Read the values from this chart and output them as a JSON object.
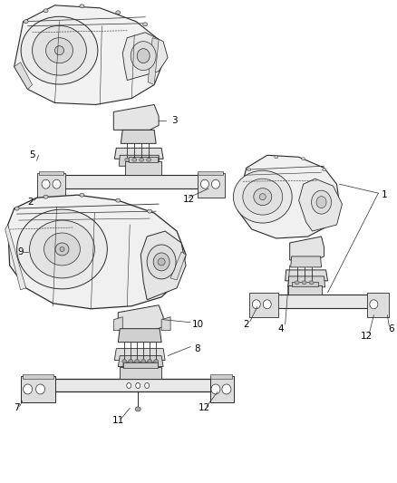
{
  "background_color": "#ffffff",
  "line_color": "#2a2a2a",
  "fill_light": "#f5f5f5",
  "fill_mid": "#e8e8e8",
  "fill_dark": "#d8d8d8",
  "figsize": [
    4.38,
    5.33
  ],
  "dpi": 100,
  "label_fontsize": 7.5
}
